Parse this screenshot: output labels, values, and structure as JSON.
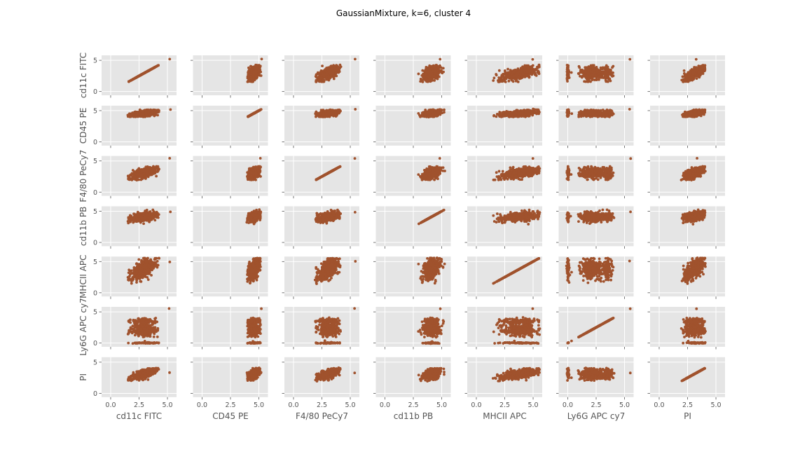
{
  "figure": {
    "title": "GaussianMixture, k=6, cluster 4"
  },
  "colors": {
    "point": "#a0522d",
    "panel_bg": "#e5e5e5",
    "grid": "#ffffff",
    "text": "#555555"
  },
  "chart_data": {
    "type": "scatter",
    "layout": "scatter-matrix",
    "grid": true,
    "variables": [
      "cd11c FITC",
      "CD45 PE",
      "F4/80 PeCy7",
      "cd11b PB",
      "MHCII APC",
      "Ly6G APC cy7",
      "PI"
    ],
    "x_ticks": [
      "0.0",
      "2.5",
      "5.0"
    ],
    "y_ticks": [
      "0",
      "5"
    ],
    "xlim": [
      -0.8,
      5.8
    ],
    "ylim": [
      -0.6,
      5.8
    ],
    "variable_ranges": {
      "cd11c FITC": [
        1.6,
        4.2
      ],
      "CD45 PE": [
        4.05,
        5.1
      ],
      "F4/80 PeCy7": [
        2.0,
        4.1
      ],
      "cd11b PB": [
        2.6,
        5.2
      ],
      "MHCII APC": [
        1.5,
        5.5
      ],
      "Ly6G APC cy7": [
        0.0,
        4.3
      ],
      "PI": [
        2.0,
        4.0
      ]
    },
    "outlier_point": {
      "cd11c FITC": 5.2,
      "CD45 PE": 5.2,
      "F4/80 PeCy7": 5.4,
      "cd11b PB": 4.9,
      "MHCII APC": 5.0,
      "Ly6G APC cy7": 5.5,
      "PI": 3.3
    },
    "n_points": 450
  }
}
